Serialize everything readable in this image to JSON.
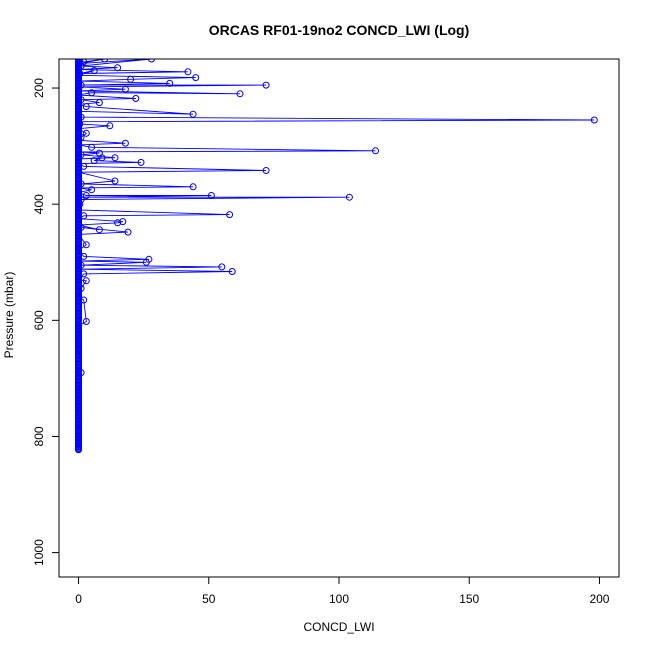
{
  "chart_data": {
    "type": "line",
    "title": "ORCAS RF01-19no2 CONCD_LWI (Log)",
    "xlabel": "CONCD_LWI",
    "ylabel": "Pressure (mbar)",
    "xlim": [
      -7.5,
      207.5
    ],
    "ylim": [
      1042,
      150
    ],
    "y_inverted": true,
    "x_ticks": [
      0,
      50,
      100,
      150,
      200
    ],
    "y_ticks": [
      200,
      400,
      600,
      800,
      1000
    ],
    "grid": false,
    "legend": "none",
    "marker": "open-circle",
    "line_color": "#0000ff",
    "series": [
      {
        "values_note": "",
        "points": [
          [
            0,
            150
          ],
          [
            0.5,
            152
          ],
          [
            2,
            155
          ],
          [
            10,
            150
          ],
          [
            0,
            158
          ],
          [
            28,
            150
          ],
          [
            1,
            162
          ],
          [
            15,
            165
          ],
          [
            0,
            168
          ],
          [
            42,
            172
          ],
          [
            0.5,
            175
          ],
          [
            6,
            170
          ],
          [
            0,
            178
          ],
          [
            45,
            182
          ],
          [
            20,
            185
          ],
          [
            0,
            188
          ],
          [
            35,
            192
          ],
          [
            1,
            195
          ],
          [
            72,
            195
          ],
          [
            0,
            198
          ],
          [
            18,
            202
          ],
          [
            0,
            205
          ],
          [
            62,
            210
          ],
          [
            5,
            208
          ],
          [
            0,
            212
          ],
          [
            22,
            218
          ],
          [
            1,
            220
          ],
          [
            8,
            225
          ],
          [
            0,
            228
          ],
          [
            3,
            232
          ],
          [
            44,
            245
          ],
          [
            0,
            240
          ],
          [
            1,
            250
          ],
          [
            198,
            255
          ],
          [
            0,
            258
          ],
          [
            0.5,
            262
          ],
          [
            12,
            265
          ],
          [
            0,
            270
          ],
          [
            3,
            278
          ],
          [
            1,
            285
          ],
          [
            0,
            290
          ],
          [
            18,
            295
          ],
          [
            0,
            298
          ],
          [
            5,
            302
          ],
          [
            114,
            308
          ],
          [
            0,
            310
          ],
          [
            8,
            312
          ],
          [
            1,
            315
          ],
          [
            14,
            320
          ],
          [
            0,
            322
          ],
          [
            9,
            320
          ],
          [
            6,
            325
          ],
          [
            24,
            328
          ],
          [
            0,
            330
          ],
          [
            2,
            335
          ],
          [
            72,
            342
          ],
          [
            0,
            345
          ],
          [
            14,
            360
          ],
          [
            1,
            365
          ],
          [
            44,
            370
          ],
          [
            0,
            372
          ],
          [
            5,
            375
          ],
          [
            0,
            380
          ],
          [
            3,
            385
          ],
          [
            51,
            385
          ],
          [
            0,
            388
          ],
          [
            104,
            388
          ],
          [
            1,
            392
          ],
          [
            0,
            395
          ],
          [
            0.5,
            400
          ],
          [
            0,
            410
          ],
          [
            58,
            418
          ],
          [
            2,
            420
          ],
          [
            0,
            425
          ],
          [
            17,
            430
          ],
          [
            15,
            432
          ],
          [
            0,
            436
          ],
          [
            8,
            444
          ],
          [
            1,
            440
          ],
          [
            19,
            448
          ],
          [
            0,
            452
          ],
          [
            3,
            470
          ],
          [
            0,
            480
          ],
          [
            2,
            490
          ],
          [
            27,
            495
          ],
          [
            0,
            498
          ],
          [
            26,
            500
          ],
          [
            1,
            505
          ],
          [
            55,
            508
          ],
          [
            0,
            512
          ],
          [
            59,
            516
          ],
          [
            2,
            520
          ],
          [
            0,
            530
          ],
          [
            3,
            532
          ],
          [
            1,
            545
          ],
          [
            0,
            560
          ],
          [
            2,
            565
          ],
          [
            3,
            602
          ],
          [
            0,
            610
          ],
          [
            0,
            650
          ],
          [
            1,
            690
          ],
          [
            0,
            720
          ],
          [
            0,
            780
          ],
          [
            0,
            823
          ]
        ]
      }
    ],
    "dense_band": {
      "x": 0,
      "pressure_range": [
        150,
        823
      ]
    }
  }
}
